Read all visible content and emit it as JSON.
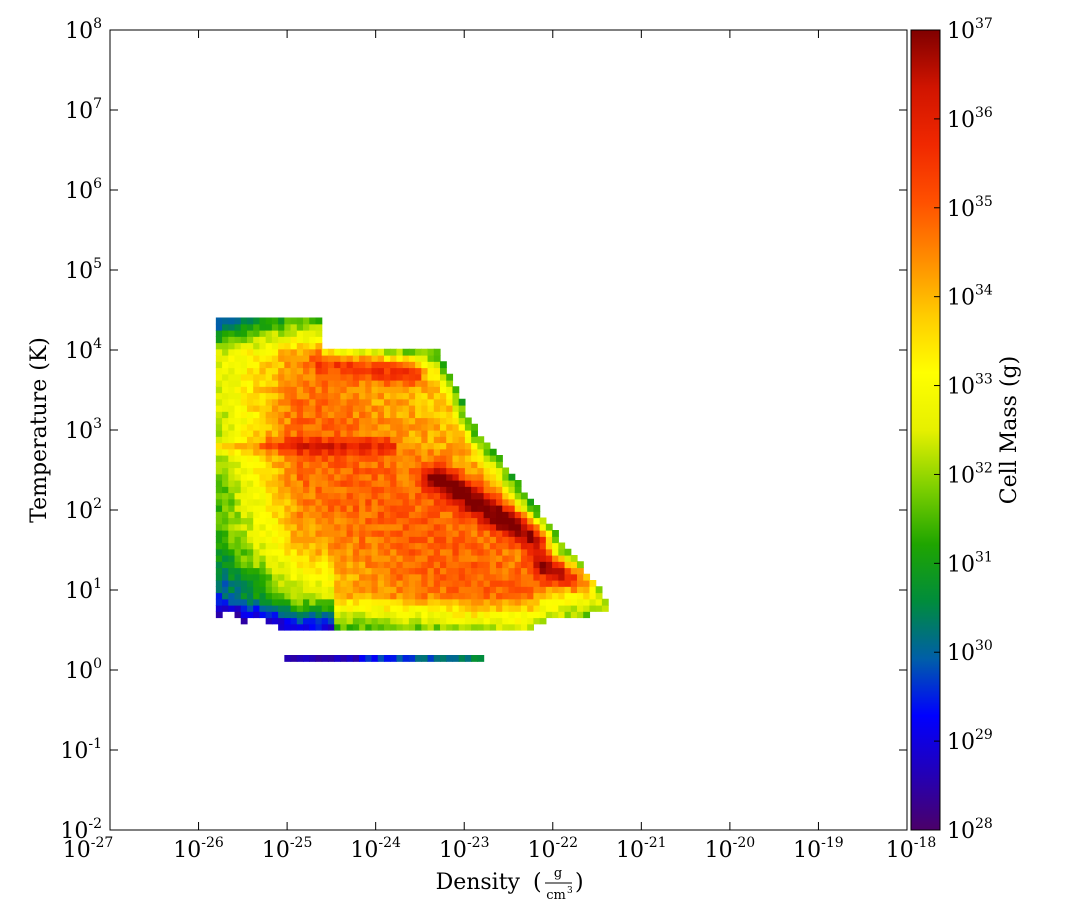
{
  "chart_data": {
    "type": "heatmap",
    "title": "",
    "xlabel": "Density",
    "xlabel_units": {
      "numerator": "g",
      "denominator": "cm",
      "denominator_exponent": "3"
    },
    "ylabel": "Temperature",
    "ylabel_units": "(K)",
    "xscale": "log",
    "yscale": "log",
    "xlim": [
      1e-27,
      1e-18
    ],
    "ylim": [
      0.01,
      100000000
    ],
    "x_ticks": [
      {
        "base": "10",
        "exp": "-27"
      },
      {
        "base": "10",
        "exp": "-26"
      },
      {
        "base": "10",
        "exp": "-25"
      },
      {
        "base": "10",
        "exp": "-24"
      },
      {
        "base": "10",
        "exp": "-23"
      },
      {
        "base": "10",
        "exp": "-22"
      },
      {
        "base": "10",
        "exp": "-21"
      },
      {
        "base": "10",
        "exp": "-20"
      },
      {
        "base": "10",
        "exp": "-19"
      },
      {
        "base": "10",
        "exp": "-18"
      }
    ],
    "y_ticks": [
      {
        "base": "10",
        "exp": "-2"
      },
      {
        "base": "10",
        "exp": "-1"
      },
      {
        "base": "10",
        "exp": "0"
      },
      {
        "base": "10",
        "exp": "1"
      },
      {
        "base": "10",
        "exp": "2"
      },
      {
        "base": "10",
        "exp": "3"
      },
      {
        "base": "10",
        "exp": "4"
      },
      {
        "base": "10",
        "exp": "5"
      },
      {
        "base": "10",
        "exp": "6"
      },
      {
        "base": "10",
        "exp": "7"
      },
      {
        "base": "10",
        "exp": "8"
      }
    ],
    "colorbar": {
      "label": "Cell Mass",
      "units": "(g)",
      "scale": "log",
      "range": [
        1e+28,
        1e+37
      ],
      "ticks": [
        {
          "base": "10",
          "exp": "28"
        },
        {
          "base": "10",
          "exp": "29"
        },
        {
          "base": "10",
          "exp": "30"
        },
        {
          "base": "10",
          "exp": "31"
        },
        {
          "base": "10",
          "exp": "32"
        },
        {
          "base": "10",
          "exp": "33"
        },
        {
          "base": "10",
          "exp": "34"
        },
        {
          "base": "10",
          "exp": "35"
        },
        {
          "base": "10",
          "exp": "36"
        },
        {
          "base": "10",
          "exp": "37"
        }
      ],
      "colormap": [
        "#4b0069",
        "#2200b8",
        "#0000ff",
        "#005fa8",
        "#008c3c",
        "#1fa500",
        "#7fd000",
        "#e6f000",
        "#ffff00",
        "#ffcc00",
        "#ff8c00",
        "#ff5000",
        "#f02800",
        "#d01400",
        "#800000"
      ]
    },
    "log_density_range": [
      -25.7,
      -21.5
    ],
    "log_temperature_range": [
      0.1,
      4.4
    ],
    "features": [
      {
        "description": "main hot ridge",
        "log_density": [
          -24.5,
          -23.6
        ],
        "log_temperature": [
          3.85,
          3.75
        ],
        "log_mass": 36.8
      },
      {
        "description": "cooling ridge",
        "log_density": [
          -23.3,
          -22.2
        ],
        "log_temperature": [
          2.4,
          1.65
        ],
        "log_mass": 36.8
      },
      {
        "description": "dense cold ridge",
        "log_density": [
          -22.1,
          -21.6
        ],
        "log_temperature": [
          1.3,
          1.15
        ],
        "log_mass": 36.5
      },
      {
        "description": "thin cold floor strip",
        "log_density": [
          -25.0,
          -22.5
        ],
        "log_temperature": [
          0.14,
          0.14
        ],
        "log_mass": 29.5
      }
    ]
  }
}
